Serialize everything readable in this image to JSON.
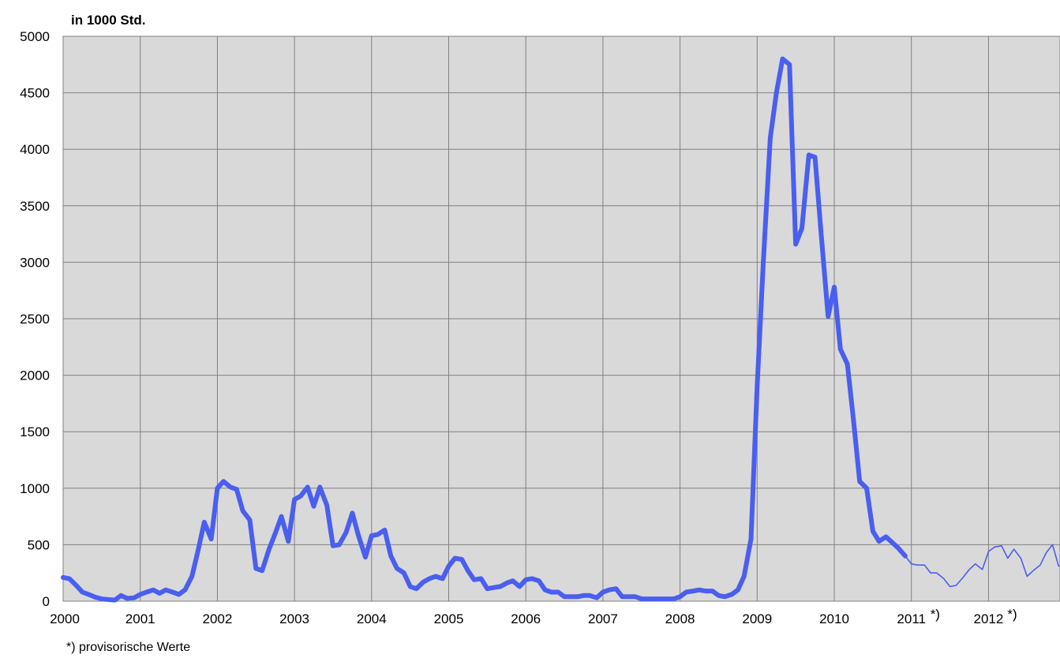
{
  "chart_data": {
    "type": "line",
    "ylabel": "in 1000 Std.",
    "ylim": [
      0,
      5000
    ],
    "yticks": [
      "0",
      "500",
      "1000",
      "1500",
      "2000",
      "2500",
      "3000",
      "3500",
      "4000",
      "4500",
      "5000"
    ],
    "xlim": [
      2000,
      2012.83
    ],
    "xticks": [
      {
        "value": 2000,
        "label": "2000",
        "marker": ""
      },
      {
        "value": 2001,
        "label": "2001",
        "marker": ""
      },
      {
        "value": 2002,
        "label": "2002",
        "marker": ""
      },
      {
        "value": 2003,
        "label": "2003",
        "marker": ""
      },
      {
        "value": 2004,
        "label": "2004",
        "marker": ""
      },
      {
        "value": 2005,
        "label": "2005",
        "marker": ""
      },
      {
        "value": 2006,
        "label": "2006",
        "marker": ""
      },
      {
        "value": 2007,
        "label": "2007",
        "marker": ""
      },
      {
        "value": 2008,
        "label": "2008",
        "marker": ""
      },
      {
        "value": 2009,
        "label": "2009",
        "marker": ""
      },
      {
        "value": 2010,
        "label": "2010",
        "marker": ""
      },
      {
        "value": 2011,
        "label": "2011",
        "marker": "*)"
      },
      {
        "value": 2012,
        "label": "2012",
        "marker": "*)"
      }
    ],
    "grid": true,
    "background": "#d9d9d9",
    "line_color": "#4a5ef0",
    "footnote": "*) provisorische Werte",
    "series": [
      {
        "style": "final",
        "x": [
          2000.0,
          2000.08,
          2000.17,
          2000.25,
          2000.33,
          2000.42,
          2000.5,
          2000.58,
          2000.67,
          2000.75,
          2000.83,
          2000.92,
          2001.0,
          2001.08,
          2001.17,
          2001.25,
          2001.33,
          2001.42,
          2001.5,
          2001.58,
          2001.67,
          2001.75,
          2001.83,
          2001.92,
          2002.0,
          2002.08,
          2002.17,
          2002.25,
          2002.33,
          2002.42,
          2002.5,
          2002.58,
          2002.67,
          2002.75,
          2002.83,
          2002.92,
          2003.0,
          2003.08,
          2003.17,
          2003.25,
          2003.33,
          2003.42,
          2003.5,
          2003.58,
          2003.67,
          2003.75,
          2003.83,
          2003.92,
          2004.0,
          2004.08,
          2004.17,
          2004.25,
          2004.33,
          2004.42,
          2004.5,
          2004.58,
          2004.67,
          2004.75,
          2004.83,
          2004.92,
          2005.0,
          2005.08,
          2005.17,
          2005.25,
          2005.33,
          2005.42,
          2005.5,
          2005.58,
          2005.67,
          2005.75,
          2005.83,
          2005.92,
          2006.0,
          2006.08,
          2006.17,
          2006.25,
          2006.33,
          2006.42,
          2006.5,
          2006.58,
          2006.67,
          2006.75,
          2006.83,
          2006.92,
          2007.0,
          2007.08,
          2007.17,
          2007.25,
          2007.33,
          2007.42,
          2007.5,
          2007.58,
          2007.67,
          2007.75,
          2007.83,
          2007.92,
          2008.0,
          2008.08,
          2008.17,
          2008.25,
          2008.33,
          2008.42,
          2008.5,
          2008.58,
          2008.67,
          2008.75,
          2008.83,
          2008.92,
          2009.0,
          2009.08,
          2009.17,
          2009.25,
          2009.33,
          2009.42,
          2009.5,
          2009.58,
          2009.67,
          2009.75,
          2009.83,
          2009.92,
          2010.0,
          2010.08,
          2010.17,
          2010.25,
          2010.33,
          2010.42,
          2010.5,
          2010.58,
          2010.67,
          2010.75,
          2010.83,
          2010.92
        ],
        "values": [
          210,
          200,
          140,
          80,
          60,
          35,
          20,
          15,
          10,
          50,
          25,
          30,
          60,
          80,
          100,
          70,
          100,
          80,
          60,
          100,
          220,
          450,
          700,
          550,
          1000,
          1060,
          1010,
          990,
          800,
          720,
          290,
          270,
          460,
          600,
          750,
          530,
          900,
          930,
          1010,
          840,
          1010,
          850,
          490,
          500,
          610,
          780,
          580,
          390,
          580,
          590,
          630,
          400,
          290,
          250,
          130,
          110,
          170,
          200,
          220,
          200,
          310,
          380,
          370,
          270,
          190,
          200,
          110,
          120,
          130,
          160,
          180,
          130,
          190,
          200,
          180,
          100,
          80,
          80,
          40,
          40,
          40,
          50,
          50,
          30,
          80,
          100,
          110,
          40,
          40,
          40,
          20,
          20,
          20,
          20,
          20,
          20,
          40,
          80,
          90,
          100,
          90,
          90,
          50,
          40,
          60,
          100,
          220,
          550,
          1900,
          3000,
          4100,
          4500,
          4800,
          4750,
          3160,
          3300,
          3950,
          3930,
          3250,
          2520,
          2780,
          2230,
          2100,
          1600,
          1060,
          1000,
          620,
          530,
          570,
          520,
          470,
          400
        ]
      },
      {
        "style": "provisional",
        "x": [
          2010.92,
          2011.0,
          2011.08,
          2011.17,
          2011.25,
          2011.33,
          2011.42,
          2011.5,
          2011.58,
          2011.67,
          2011.75,
          2011.83,
          2011.92,
          2012.0,
          2012.08,
          2012.17,
          2012.25,
          2012.33,
          2012.42,
          2012.5,
          2012.58,
          2012.67,
          2012.75,
          2012.83
        ],
        "values": [
          400,
          330,
          320,
          320,
          250,
          250,
          200,
          130,
          140,
          210,
          280,
          330,
          280,
          440,
          480,
          490,
          380,
          460,
          380,
          220,
          270,
          320,
          430,
          500
        ]
      },
      {
        "style": "provisional",
        "x": [
          2012.83,
          2012.91
        ],
        "values": [
          500,
          310
        ]
      }
    ]
  }
}
